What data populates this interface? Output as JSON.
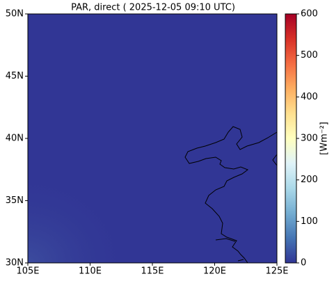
{
  "chart_data": {
    "type": "map",
    "title": "PAR, direct ( 2025-12-05 09:10 UTC)",
    "xlim": [
      105,
      125
    ],
    "xticks": [
      {
        "value": 105,
        "label": "105E"
      },
      {
        "value": 110,
        "label": "110E"
      },
      {
        "value": 115,
        "label": "115E"
      },
      {
        "value": 120,
        "label": "120E"
      },
      {
        "value": 125,
        "label": "125E"
      }
    ],
    "ylim": [
      30,
      50
    ],
    "yticks": [
      {
        "value": 30,
        "label": "30N"
      },
      {
        "value": 35,
        "label": "35N"
      },
      {
        "value": 40,
        "label": "40N"
      },
      {
        "value": 45,
        "label": "45N"
      },
      {
        "value": 50,
        "label": "50N"
      }
    ],
    "colorbar": {
      "label": "[Wm⁻²]",
      "lim": [
        0,
        600
      ],
      "ticks": [
        0,
        100,
        200,
        300,
        400,
        500,
        600
      ],
      "colors": [
        "#313695",
        "#4575b4",
        "#74add1",
        "#abd9e9",
        "#e0f3f8",
        "#ffffbf",
        "#fee090",
        "#fdae61",
        "#f46d43",
        "#d73027",
        "#a50026"
      ]
    }
  }
}
